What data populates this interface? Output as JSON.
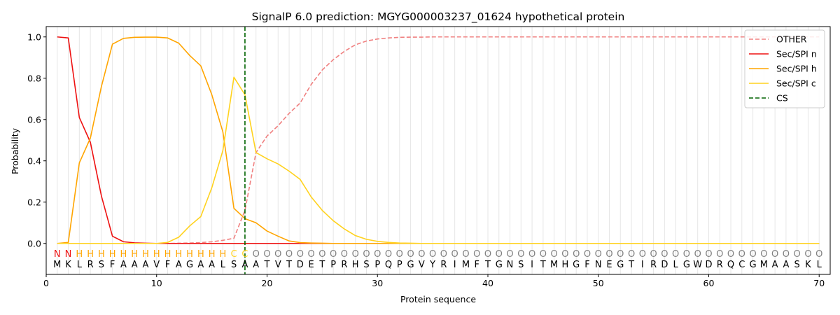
{
  "chart_data": {
    "type": "line",
    "title": "SignalP 6.0 prediction: MGYG000003237_01624 hypothetical protein",
    "xlabel": "Protein sequence",
    "ylabel": "Probability",
    "xlim": [
      0,
      71
    ],
    "ylim": [
      -0.15,
      1.05
    ],
    "xticks": [
      0,
      10,
      20,
      30,
      40,
      50,
      60,
      70
    ],
    "yticks": [
      0.0,
      0.2,
      0.4,
      0.6,
      0.8,
      1.0
    ],
    "xtick_labels": [
      "0",
      "10",
      "20",
      "30",
      "40",
      "50",
      "60",
      "70"
    ],
    "ytick_labels": [
      "0.0",
      "0.2",
      "0.4",
      "0.6",
      "0.8",
      "1.0"
    ],
    "grid": "vertical lines at every residue",
    "legend_position": "top-right",
    "sequence": [
      "M",
      "K",
      "L",
      "R",
      "S",
      "F",
      "A",
      "A",
      "A",
      "V",
      "F",
      "A",
      "G",
      "A",
      "A",
      "L",
      "S",
      "A",
      "A",
      "T",
      "V",
      "T",
      "D",
      "E",
      "T",
      "P",
      "R",
      "H",
      "S",
      "P",
      "Q",
      "P",
      "G",
      "V",
      "Y",
      "R",
      "I",
      "M",
      "F",
      "T",
      "G",
      "N",
      "S",
      "I",
      "T",
      "M",
      "H",
      "G",
      "F",
      "N",
      "E",
      "G",
      "T",
      "I",
      "R",
      "D",
      "L",
      "G",
      "W",
      "D",
      "R",
      "Q",
      "C",
      "G",
      "M",
      "A",
      "A",
      "S",
      "K",
      "L"
    ],
    "region_labels": [
      "N",
      "N",
      "H",
      "H",
      "H",
      "H",
      "H",
      "H",
      "H",
      "H",
      "H",
      "H",
      "H",
      "H",
      "H",
      "H",
      "C",
      "C",
      "O",
      "O",
      "O",
      "O",
      "O",
      "O",
      "O",
      "O",
      "O",
      "O",
      "O",
      "O",
      "O",
      "O",
      "O",
      "O",
      "O",
      "O",
      "O",
      "O",
      "O",
      "O",
      "O",
      "O",
      "O",
      "O",
      "O",
      "O",
      "O",
      "O",
      "O",
      "O",
      "O",
      "O",
      "O",
      "O",
      "O",
      "O",
      "O",
      "O",
      "O",
      "O",
      "O",
      "O",
      "O",
      "O",
      "O",
      "O",
      "O",
      "O",
      "O",
      "O"
    ],
    "region_colors": {
      "N": "#ee1111",
      "H": "#ffa500",
      "C": "#ffd21e",
      "O": "#808080"
    },
    "cleavage_site": 18,
    "series": [
      {
        "name": "OTHER",
        "color": "#f08080",
        "dash": "dashed",
        "values": [
          0.0,
          0.0,
          0.0,
          0.0,
          0.0,
          0.0,
          0.0,
          0.0,
          0.0,
          0.0,
          0.0,
          0.001,
          0.002,
          0.004,
          0.008,
          0.015,
          0.025,
          0.16,
          0.44,
          0.52,
          0.57,
          0.63,
          0.68,
          0.77,
          0.84,
          0.89,
          0.93,
          0.962,
          0.98,
          0.99,
          0.995,
          0.998,
          0.999,
          0.999,
          1.0,
          1.0,
          1.0,
          1.0,
          1.0,
          1.0,
          1.0,
          1.0,
          1.0,
          1.0,
          1.0,
          1.0,
          1.0,
          1.0,
          1.0,
          1.0,
          1.0,
          1.0,
          1.0,
          1.0,
          1.0,
          1.0,
          1.0,
          1.0,
          1.0,
          1.0,
          1.0,
          1.0,
          1.0,
          1.0,
          1.0,
          1.0,
          1.0,
          1.0,
          1.0,
          1.0
        ]
      },
      {
        "name": "Sec/SPI n",
        "color": "#ee1111",
        "dash": "solid",
        "values": [
          1.0,
          0.995,
          0.61,
          0.49,
          0.23,
          0.035,
          0.008,
          0.003,
          0.001,
          0.0,
          0.0,
          0.0,
          0.0,
          0.0,
          0.0,
          0.0,
          0.0,
          0.0,
          0.0,
          0.0,
          0.0,
          0.0,
          0.0,
          0.0,
          0.0,
          0.0,
          0.0,
          0.0,
          0.0,
          0.0,
          0.0,
          0.0,
          0.0,
          0.0,
          0.0,
          0.0,
          0.0,
          0.0,
          0.0,
          0.0,
          0.0,
          0.0,
          0.0,
          0.0,
          0.0,
          0.0,
          0.0,
          0.0,
          0.0,
          0.0,
          0.0,
          0.0,
          0.0,
          0.0,
          0.0,
          0.0,
          0.0,
          0.0,
          0.0,
          0.0,
          0.0,
          0.0,
          0.0,
          0.0,
          0.0,
          0.0,
          0.0,
          0.0,
          0.0,
          0.0
        ]
      },
      {
        "name": "Sec/SPI h",
        "color": "#ffa500",
        "dash": "solid",
        "values": [
          0.0,
          0.005,
          0.39,
          0.51,
          0.76,
          0.965,
          0.993,
          0.998,
          0.999,
          0.999,
          0.995,
          0.97,
          0.91,
          0.86,
          0.72,
          0.54,
          0.17,
          0.12,
          0.1,
          0.06,
          0.035,
          0.012,
          0.004,
          0.002,
          0.001,
          0.0,
          0.0,
          0.0,
          0.0,
          0.0,
          0.0,
          0.0,
          0.0,
          0.0,
          0.0,
          0.0,
          0.0,
          0.0,
          0.0,
          0.0,
          0.0,
          0.0,
          0.0,
          0.0,
          0.0,
          0.0,
          0.0,
          0.0,
          0.0,
          0.0,
          0.0,
          0.0,
          0.0,
          0.0,
          0.0,
          0.0,
          0.0,
          0.0,
          0.0,
          0.0,
          0.0,
          0.0,
          0.0,
          0.0,
          0.0,
          0.0,
          0.0,
          0.0,
          0.0,
          0.0
        ]
      },
      {
        "name": "Sec/SPI c",
        "color": "#ffd21e",
        "dash": "solid",
        "values": [
          0.0,
          0.0,
          0.0,
          0.0,
          0.0,
          0.0,
          0.0,
          0.0,
          0.0,
          0.0,
          0.005,
          0.03,
          0.085,
          0.13,
          0.27,
          0.45,
          0.805,
          0.72,
          0.44,
          0.41,
          0.385,
          0.35,
          0.31,
          0.225,
          0.16,
          0.11,
          0.07,
          0.038,
          0.02,
          0.01,
          0.005,
          0.002,
          0.001,
          0.0,
          0.0,
          0.0,
          0.0,
          0.0,
          0.0,
          0.0,
          0.0,
          0.0,
          0.0,
          0.0,
          0.0,
          0.0,
          0.0,
          0.0,
          0.0,
          0.0,
          0.0,
          0.0,
          0.0,
          0.0,
          0.0,
          0.0,
          0.0,
          0.0,
          0.0,
          0.0,
          0.0,
          0.0,
          0.0,
          0.0,
          0.0,
          0.0,
          0.0,
          0.0,
          0.0,
          0.0
        ]
      }
    ],
    "legend": [
      {
        "label": "OTHER",
        "color": "#f08080",
        "dash": "dashed"
      },
      {
        "label": "Sec/SPI n",
        "color": "#ee1111",
        "dash": "solid"
      },
      {
        "label": "Sec/SPI h",
        "color": "#ffa500",
        "dash": "solid"
      },
      {
        "label": "Sec/SPI c",
        "color": "#ffd21e",
        "dash": "solid"
      },
      {
        "label": "CS",
        "color": "#006400",
        "dash": "dashed"
      }
    ]
  }
}
